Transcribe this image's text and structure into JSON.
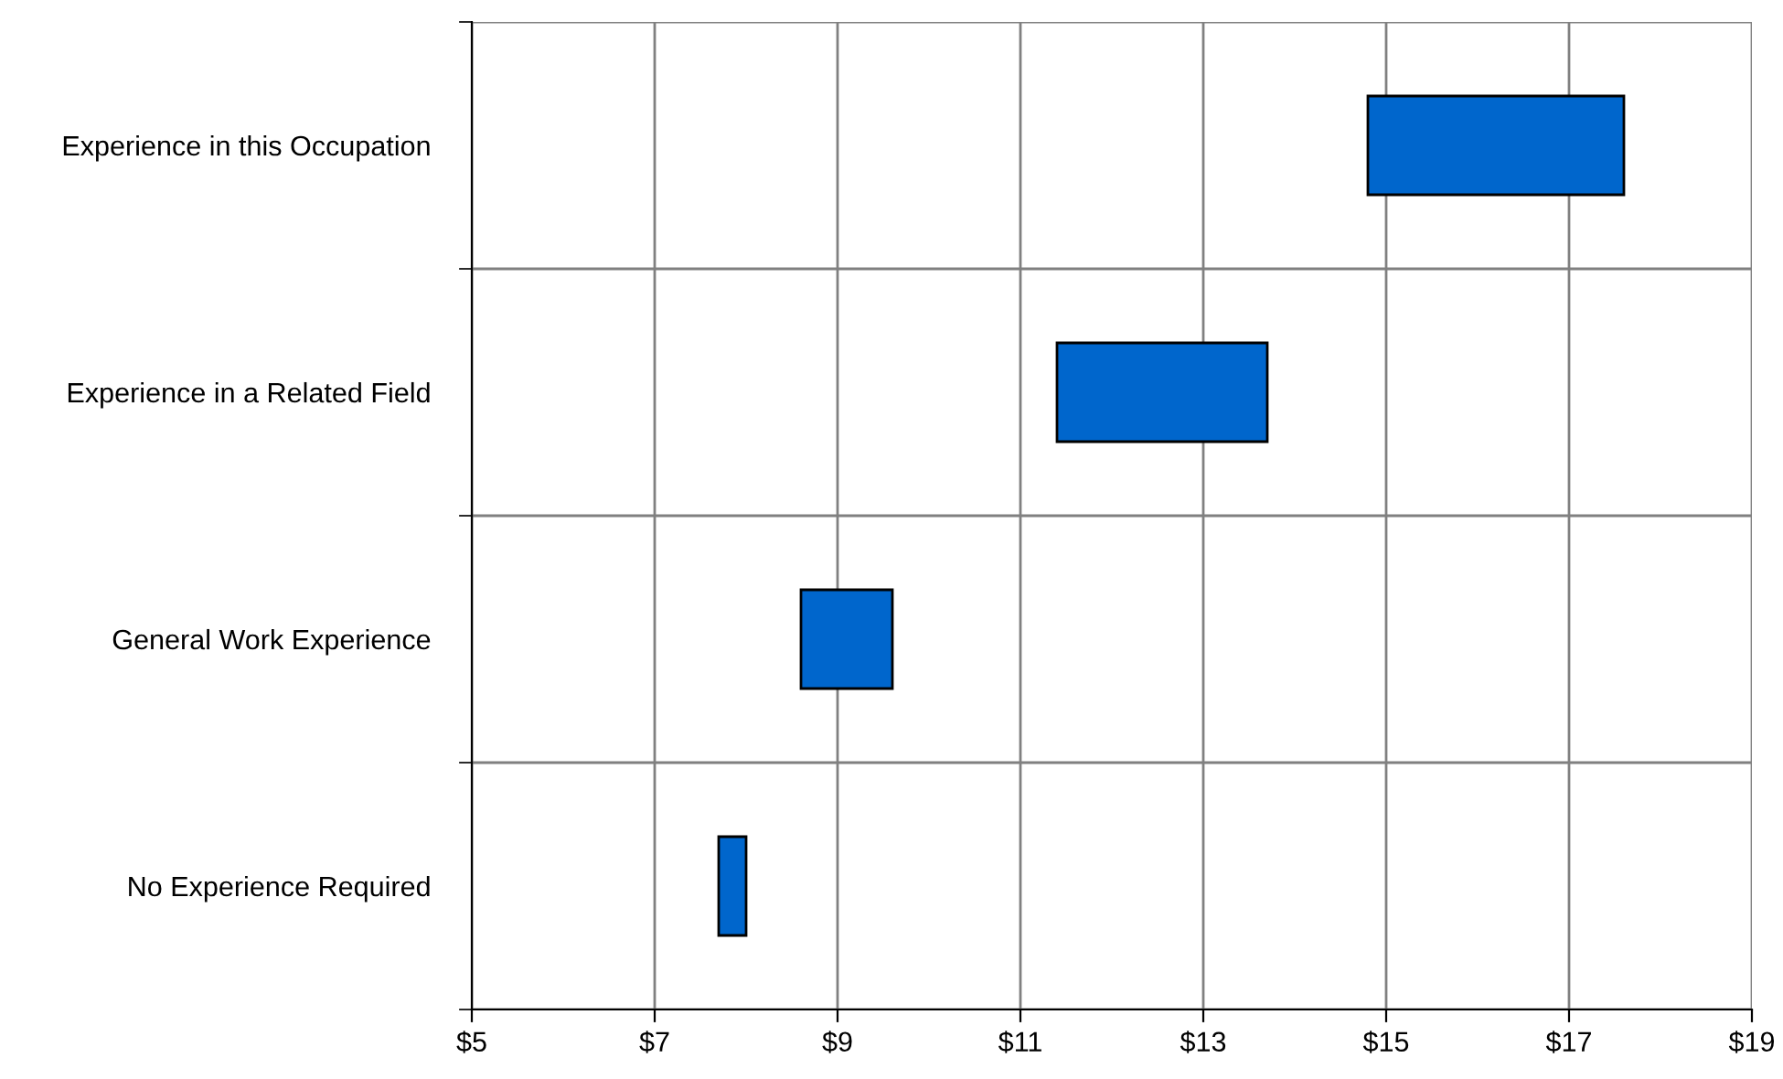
{
  "chart_data": {
    "type": "bar",
    "orientation": "horizontal",
    "categories": [
      "Experience in this Occupation",
      "Experience in a Related Field",
      "General Work Experience",
      "No Experience Required"
    ],
    "base": [
      14.8,
      11.4,
      8.6,
      7.7
    ],
    "values": [
      2.8,
      2.3,
      1.0,
      0.3
    ],
    "color": "#0066cc",
    "xlim": [
      5,
      19
    ],
    "xticks": [
      {
        "value": 5,
        "label": "$5"
      },
      {
        "value": 7,
        "label": "$7"
      },
      {
        "value": 9,
        "label": "$9"
      },
      {
        "value": 11,
        "label": "$11"
      },
      {
        "value": 13,
        "label": "$13"
      },
      {
        "value": 15,
        "label": "$15"
      },
      {
        "value": 17,
        "label": "$17"
      },
      {
        "value": 19,
        "label": "$19"
      }
    ],
    "grid": true
  }
}
